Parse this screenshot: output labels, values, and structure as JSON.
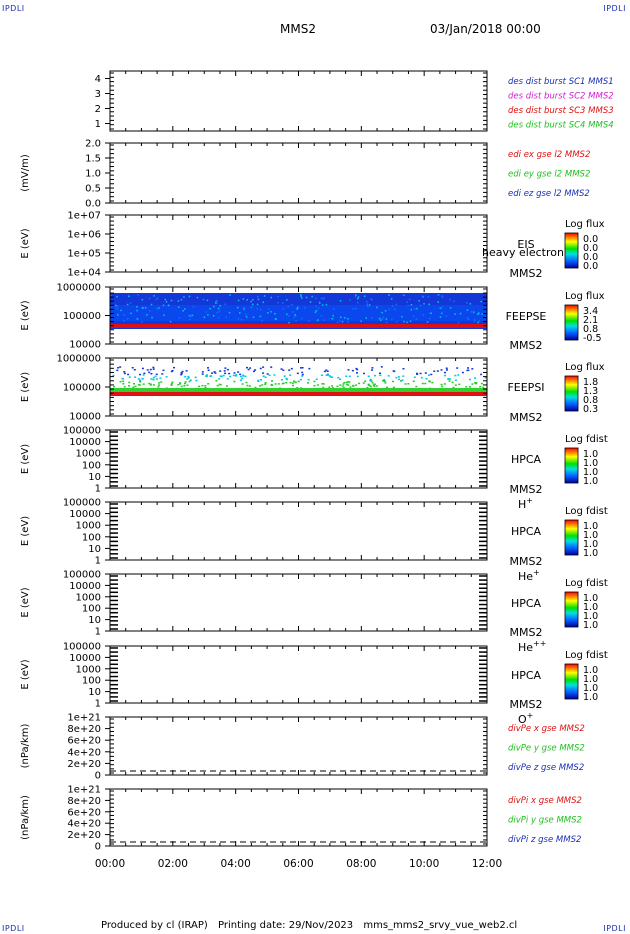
{
  "corners": {
    "tl": "IPDLI",
    "tr": "IPDLI",
    "bl": "IPDLI",
    "br": "IPDLI"
  },
  "header": {
    "spacecraft": "MMS2",
    "date": "03/Jan/2018 00:00"
  },
  "footer": {
    "producer": "Produced by cl (IRAP)",
    "printing": "Printing date: 29/Nov/2023",
    "script": "mms_mms2_srvy_vue_web2.cl"
  },
  "chart_data": [
    {
      "type": "line",
      "ylim": [
        0.5,
        4.5
      ],
      "yticks": [
        "1",
        "2",
        "3",
        "4"
      ],
      "legend": [
        {
          "text": "des dist burst SC1 MMS1",
          "color": "#1a2fb4"
        },
        {
          "text": "des dist burst SC2 MMS2",
          "color": "#d020d0"
        },
        {
          "text": "des dist burst SC3 MMS3",
          "color": "#e01010"
        },
        {
          "text": "des dist burst SC4 MMS4",
          "color": "#20c020"
        }
      ]
    },
    {
      "type": "line",
      "ylabel": "(mV/m)",
      "ylim": [
        0,
        2
      ],
      "yticks": [
        "0.0",
        "0.5",
        "1.0",
        "1.5",
        "2.0"
      ],
      "legend": [
        {
          "text": "edi ex gse l2 MMS2",
          "color": "#e01010"
        },
        {
          "text": "edi ey gse l2 MMS2",
          "color": "#20c020"
        },
        {
          "text": "edi ez gse l2 MMS2",
          "color": "#1a2fb4"
        }
      ]
    },
    {
      "type": "heatmap",
      "ylabel": "E (eV)",
      "yscale": "log",
      "yticks": [
        "1e+04",
        "1e+05",
        "1e+06",
        "1e+07"
      ],
      "instrument": [
        "EIS",
        "MMS2"
      ],
      "overlay": "heavy electron to",
      "cbar_title": "Log flux",
      "cbar_ticks": [
        "0.0",
        "0.0",
        "0.0",
        "0.0"
      ]
    },
    {
      "type": "heatmap",
      "ylabel": "E (eV)",
      "yscale": "log",
      "yticks": [
        "10000",
        "100000",
        "1000000"
      ],
      "instrument": [
        "FEEPSE",
        "MMS2"
      ],
      "cbar_title": "Log flux",
      "cbar_ticks": [
        "3.4",
        "2.1",
        "0.8",
        "-0.5"
      ]
    },
    {
      "type": "heatmap",
      "ylabel": "E (eV)",
      "yscale": "log",
      "yticks": [
        "10000",
        "100000",
        "1000000"
      ],
      "instrument": [
        "FEEPSI",
        "MMS2"
      ],
      "cbar_title": "Log flux",
      "cbar_ticks": [
        "1.8",
        "1.3",
        "0.8",
        "0.3"
      ]
    },
    {
      "type": "heatmap",
      "ylabel": "E (eV)",
      "yscale": "log",
      "yticks": [
        "1",
        "10",
        "100",
        "1000",
        "10000",
        "100000"
      ],
      "instrument": [
        "HPCA",
        "MMS2"
      ],
      "species": "H",
      "species_sup": "+",
      "cbar_title": "Log fdist",
      "cbar_ticks": [
        "1.0",
        "1.0",
        "1.0",
        "1.0"
      ]
    },
    {
      "type": "heatmap",
      "ylabel": "E (eV)",
      "yscale": "log",
      "yticks": [
        "1",
        "10",
        "100",
        "1000",
        "10000",
        "100000"
      ],
      "instrument": [
        "HPCA",
        "MMS2"
      ],
      "species": "He",
      "species_sup": "+",
      "cbar_title": "Log fdist",
      "cbar_ticks": [
        "1.0",
        "1.0",
        "1.0",
        "1.0"
      ]
    },
    {
      "type": "heatmap",
      "ylabel": "E (eV)",
      "yscale": "log",
      "yticks": [
        "1",
        "10",
        "100",
        "1000",
        "10000",
        "100000"
      ],
      "instrument": [
        "HPCA",
        "MMS2"
      ],
      "species": "He",
      "species_sup": "++",
      "cbar_title": "Log fdist",
      "cbar_ticks": [
        "1.0",
        "1.0",
        "1.0",
        "1.0"
      ]
    },
    {
      "type": "heatmap",
      "ylabel": "E (eV)",
      "yscale": "log",
      "yticks": [
        "1",
        "10",
        "100",
        "1000",
        "10000",
        "100000"
      ],
      "instrument": [
        "HPCA",
        "MMS2"
      ],
      "species": "O",
      "species_sup": "+",
      "cbar_title": "Log fdist",
      "cbar_ticks": [
        "1.0",
        "1.0",
        "1.0",
        "1.0"
      ]
    },
    {
      "type": "line",
      "ylabel": "(nPa/km)",
      "ylim": [
        0,
        1e+21
      ],
      "yticks": [
        "0",
        "2e+20",
        "4e+20",
        "6e+20",
        "8e+20",
        "1e+21"
      ],
      "legend": [
        {
          "text": "divPe x gse MMS2",
          "color": "#e01010"
        },
        {
          "text": "divPe y gse MMS2",
          "color": "#20c020"
        },
        {
          "text": "divPe z gse MMS2",
          "color": "#1a2fb4"
        }
      ]
    },
    {
      "type": "line",
      "ylabel": "(nPa/km)",
      "ylim": [
        0,
        1e+21
      ],
      "yticks": [
        "0",
        "2e+20",
        "4e+20",
        "6e+20",
        "8e+20",
        "1e+21"
      ],
      "legend": [
        {
          "text": "divPi x gse MMS2",
          "color": "#e01010"
        },
        {
          "text": "divPi y gse MMS2",
          "color": "#20c020"
        },
        {
          "text": "divPi z gse MMS2",
          "color": "#1a2fb4"
        }
      ],
      "xticks": [
        "00:00",
        "02:00",
        "04:00",
        "06:00",
        "08:00",
        "10:00",
        "12:00"
      ]
    }
  ]
}
